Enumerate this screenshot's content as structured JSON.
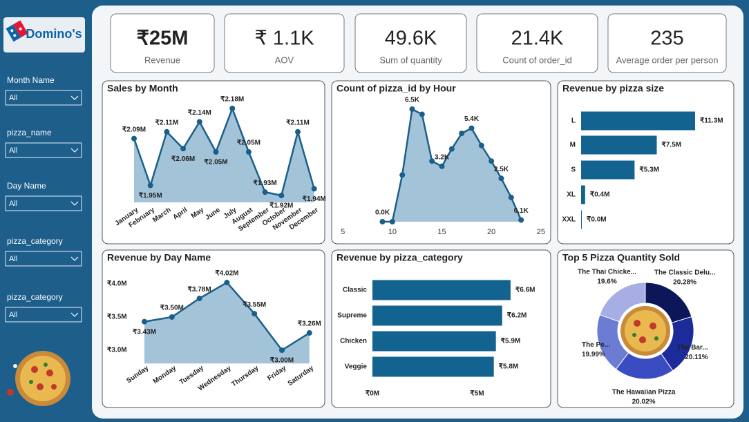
{
  "logo": "Domino's",
  "filters": [
    {
      "label": "Month Name",
      "value": "All"
    },
    {
      "label": "pizza_name",
      "value": "All"
    },
    {
      "label": "Day Name",
      "value": "All"
    },
    {
      "label": "pizza_category",
      "value": "All"
    },
    {
      "label": "pizza_category",
      "value": "All"
    }
  ],
  "kpis": [
    {
      "value": "₹25M",
      "label": "Revenue"
    },
    {
      "value": "₹ 1.1K",
      "label": "AOV"
    },
    {
      "value": "49.6K",
      "label": "Sum of quantity"
    },
    {
      "value": "21.4K",
      "label": "Count of order_id"
    },
    {
      "value": "235",
      "label": "Average order per person"
    }
  ],
  "chart_data": [
    {
      "type": "line",
      "title": "Sales by Month",
      "categories": [
        "January",
        "February",
        "March",
        "April",
        "May",
        "June",
        "July",
        "August",
        "September",
        "October",
        "November",
        "December"
      ],
      "values": [
        2.09,
        1.95,
        2.11,
        2.06,
        2.14,
        2.05,
        2.18,
        2.05,
        1.93,
        1.92,
        2.11,
        1.94
      ],
      "value_labels": [
        "₹2.09M",
        "₹1.95M",
        "₹2.11M",
        "₹2.06M",
        "₹2.14M",
        "₹2.05M",
        "₹2.18M",
        "₹2.05M",
        "₹1.93M",
        "₹1.92M",
        "₹2.11M",
        "₹1.94M"
      ],
      "color": "#1a5f8a",
      "area_color": "#a3c3d9"
    },
    {
      "type": "line",
      "title": "Count of pizza_id by Hour",
      "x": [
        9,
        10,
        11,
        12,
        13,
        14,
        15,
        16,
        17,
        18,
        19,
        20,
        21,
        22,
        23
      ],
      "values": [
        0.0,
        0.0,
        2.7,
        6.5,
        6.2,
        3.5,
        3.2,
        4.2,
        5.1,
        5.4,
        4.4,
        3.5,
        2.5,
        1.4,
        0.1
      ],
      "value_labels": [
        "0.0K",
        null,
        null,
        "6.5K",
        null,
        null,
        "3.2K",
        null,
        null,
        "5.4K",
        null,
        null,
        "2.5K",
        null,
        "0.1K"
      ],
      "xlim": [
        4.5,
        25.5
      ],
      "xticks": [
        5,
        10,
        15,
        20,
        25
      ],
      "color": "#1a5f8a",
      "area_color": "#a3c3d9"
    },
    {
      "type": "barh",
      "title": "Revenue by pizza size",
      "categories": [
        "L",
        "M",
        "S",
        "XL",
        "XXL"
      ],
      "values": [
        11.3,
        7.5,
        5.3,
        0.4,
        0.0
      ],
      "value_labels": [
        "₹11.3M",
        "₹7.5M",
        "₹5.3M",
        "₹0.4M",
        "₹0.0M"
      ],
      "color": "#12638f"
    },
    {
      "type": "line",
      "title": "Revenue by Day Name",
      "categories": [
        "Sunday",
        "Monday",
        "Tuesday",
        "Wednesday",
        "Thursday",
        "Friday",
        "Saturday"
      ],
      "values": [
        3.43,
        3.5,
        3.78,
        4.02,
        3.55,
        3.0,
        3.26
      ],
      "value_labels": [
        "₹3.43M",
        "₹3.50M",
        "₹3.78M",
        "₹4.02M",
        "₹3.55M",
        "₹3.00M",
        "₹3.26M"
      ],
      "ylim": [
        2.8,
        4.1
      ],
      "yticks": [
        {
          "value": 3.0,
          "label": "₹3.0M"
        },
        {
          "value": 3.5,
          "label": "₹3.5M"
        },
        {
          "value": 4.0,
          "label": "₹4.0M"
        }
      ],
      "color": "#1a5f8a",
      "area_color": "#a3c3d9"
    },
    {
      "type": "barh",
      "title": "Revenue by pizza_category",
      "categories": [
        "Classic",
        "Supreme",
        "Chicken",
        "Veggie"
      ],
      "values": [
        6.6,
        6.2,
        5.9,
        5.8
      ],
      "value_labels": [
        "₹6.6M",
        "₹6.2M",
        "₹5.9M",
        "₹5.8M"
      ],
      "xlim": [
        0,
        7
      ],
      "xticks": [
        {
          "value": 0,
          "label": "₹0M"
        },
        {
          "value": 5,
          "label": "₹5M"
        }
      ],
      "color": "#12638f"
    },
    {
      "type": "pie",
      "donut": true,
      "title": "Top 5 Pizza Quantity Sold",
      "categories": [
        "The Classic Delu...",
        "The Bar...",
        "The Hawaiian Pizza",
        "The Pe...",
        "The Thai Chicke..."
      ],
      "values": [
        20.28,
        20.11,
        20.02,
        19.99,
        19.6
      ],
      "value_labels": [
        "20.28%",
        "20.11%",
        "20.02%",
        "19.99%",
        "19.6%"
      ],
      "colors": [
        "#0d1658",
        "#1d2b9a",
        "#3a4cc2",
        "#6d7cd3",
        "#a6aee4"
      ]
    }
  ]
}
